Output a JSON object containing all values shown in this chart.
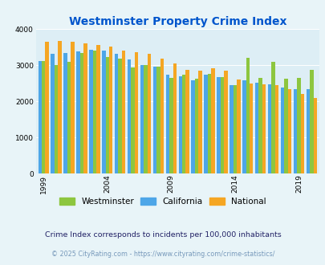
{
  "title": "Westminster Property Crime Index",
  "subtitle": "Crime Index corresponds to incidents per 100,000 inhabitants",
  "footer": "© 2025 CityRating.com - https://www.cityrating.com/crime-statistics/",
  "years": [
    1999,
    2000,
    2001,
    2002,
    2003,
    2004,
    2005,
    2006,
    2007,
    2008,
    2009,
    2010,
    2011,
    2012,
    2013,
    2014,
    2015,
    2016,
    2017,
    2018,
    2019,
    2020
  ],
  "westminster": [
    3120,
    3000,
    3100,
    3350,
    3400,
    3220,
    3180,
    2950,
    3010,
    2970,
    2650,
    2750,
    2620,
    2760,
    2680,
    2440,
    3200,
    2640,
    3090,
    2630,
    2660,
    2870
  ],
  "california": [
    3110,
    3310,
    3340,
    3390,
    3420,
    3400,
    3320,
    3170,
    3000,
    2960,
    2730,
    2690,
    2590,
    2750,
    2680,
    2450,
    2590,
    2520,
    2480,
    2380,
    2330,
    2340
  ],
  "national": [
    3640,
    3670,
    3660,
    3600,
    3560,
    3510,
    3410,
    3370,
    3310,
    3190,
    3050,
    2870,
    2850,
    2910,
    2840,
    2600,
    2490,
    2480,
    2440,
    2330,
    2200,
    2090
  ],
  "westminster_color": "#8dc63f",
  "california_color": "#4da6e8",
  "national_color": "#f5a623",
  "bg_color": "#e8f4f8",
  "plot_bg": "#ddeef5",
  "title_color": "#0055cc",
  "subtitle_color": "#222266",
  "footer_color": "#7799bb",
  "ylim": [
    0,
    4000
  ],
  "yticks": [
    0,
    1000,
    2000,
    3000,
    4000
  ],
  "tick_years": [
    1999,
    2004,
    2009,
    2014,
    2019
  ]
}
